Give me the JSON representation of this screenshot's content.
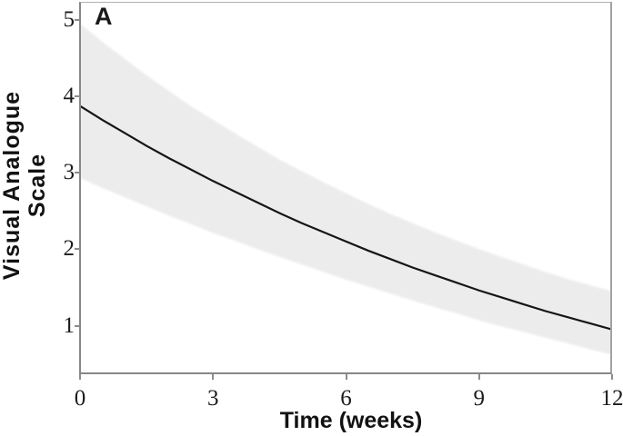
{
  "figure": {
    "panel_label": "A"
  },
  "y_axis": {
    "title_line1": "Visual Analogue",
    "title_line2": "Scale",
    "tick_labels": [
      "5",
      "4",
      "3",
      "2",
      "1"
    ],
    "tick_values": [
      5,
      4,
      3,
      2,
      1
    ]
  },
  "x_axis": {
    "title": "Time (weeks)",
    "tick_labels": [
      "0",
      "3",
      "6",
      "9",
      "12"
    ],
    "tick_values": [
      0,
      3,
      6,
      9,
      12
    ]
  },
  "colors": {
    "band": "#ececec",
    "line": "#161616",
    "tick_mark": "#8c8c8c",
    "text": "#1c1c1c"
  },
  "chart_data": {
    "type": "line",
    "title": "",
    "xlabel": "Time (weeks)",
    "ylabel": "Visual Analogue Scale",
    "xlim": [
      0,
      12
    ],
    "ylim": [
      0.365,
      5.22
    ],
    "x_ticks": [
      0,
      3,
      6,
      9,
      12
    ],
    "y_ticks": [
      1,
      2,
      3,
      4,
      5
    ],
    "grid": false,
    "legend": false,
    "panel": "A",
    "x": [
      0,
      0.5,
      1,
      1.5,
      2,
      2.5,
      3,
      3.5,
      4,
      4.5,
      5,
      5.5,
      6,
      6.5,
      7,
      7.5,
      8,
      8.5,
      9,
      9.5,
      10,
      10.5,
      11,
      11.5,
      12
    ],
    "series": [
      {
        "name": "mean",
        "values": [
          3.87,
          3.69,
          3.52,
          3.35,
          3.19,
          3.04,
          2.89,
          2.75,
          2.61,
          2.47,
          2.34,
          2.22,
          2.1,
          1.98,
          1.87,
          1.76,
          1.66,
          1.56,
          1.46,
          1.37,
          1.28,
          1.19,
          1.11,
          1.03,
          0.95
        ]
      },
      {
        "name": "ci_upper",
        "values": [
          4.95,
          4.71,
          4.49,
          4.27,
          4.07,
          3.87,
          3.69,
          3.51,
          3.34,
          3.17,
          3.02,
          2.87,
          2.73,
          2.59,
          2.46,
          2.34,
          2.22,
          2.11,
          2.0,
          1.9,
          1.8,
          1.7,
          1.61,
          1.53,
          1.45
        ]
      },
      {
        "name": "ci_lower",
        "values": [
          2.93,
          2.8,
          2.68,
          2.56,
          2.44,
          2.33,
          2.21,
          2.11,
          2.0,
          1.9,
          1.8,
          1.7,
          1.6,
          1.51,
          1.42,
          1.33,
          1.24,
          1.16,
          1.07,
          0.99,
          0.92,
          0.84,
          0.77,
          0.69,
          0.62
        ]
      }
    ],
    "band": {
      "upper_series": "ci_upper",
      "lower_series": "ci_lower"
    }
  }
}
